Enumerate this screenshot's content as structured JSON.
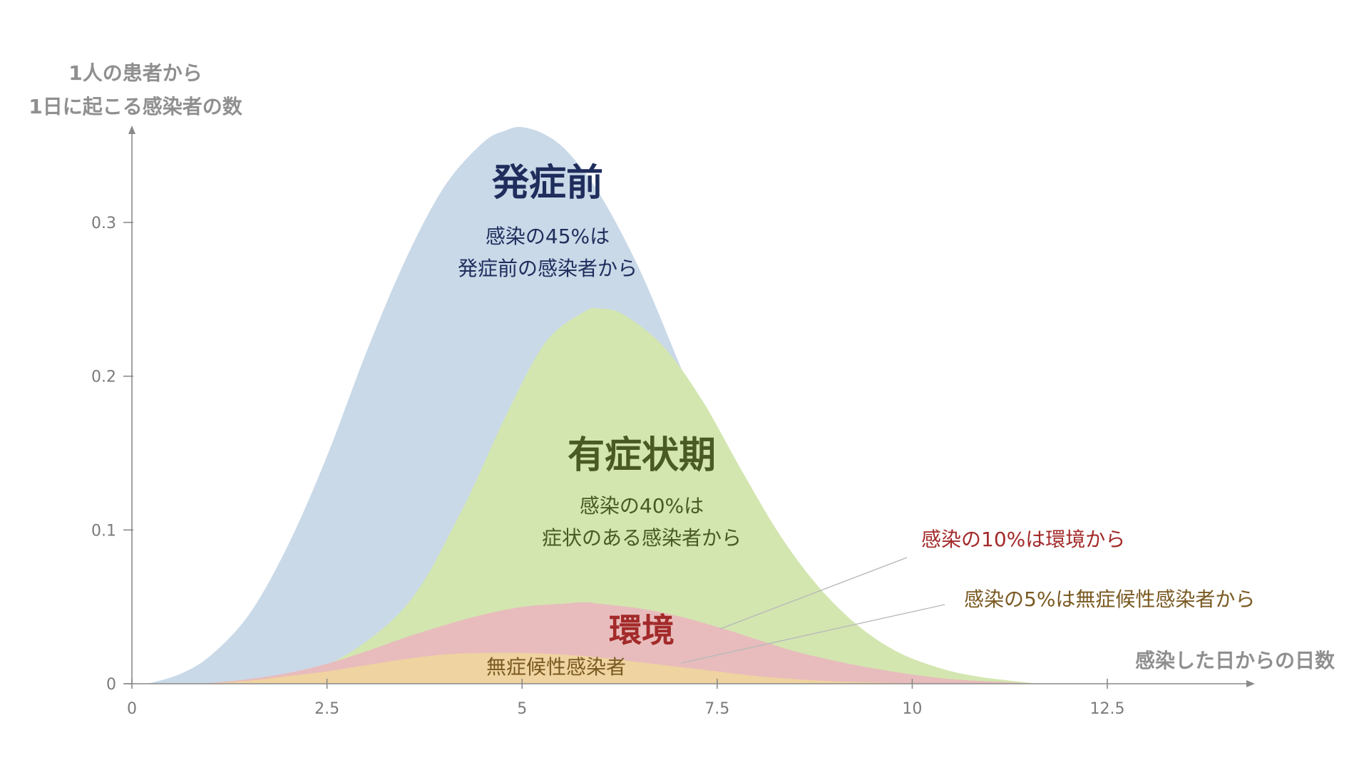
{
  "chart_data": {
    "type": "area",
    "ylabel": [
      "1人の患者から",
      "1日に起こる感染者の数"
    ],
    "xlabel": "感染した日からの日数",
    "xlim": [
      0,
      13
    ],
    "ylim": [
      0,
      0.37
    ],
    "xticks": [
      {
        "value": 0,
        "label": "0"
      },
      {
        "value": 2.5,
        "label": "2.5"
      },
      {
        "value": 5,
        "label": "5"
      },
      {
        "value": 7.5,
        "label": "7.5"
      },
      {
        "value": 10,
        "label": "10"
      },
      {
        "value": 12.5,
        "label": "12.5"
      }
    ],
    "yticks": [
      {
        "value": 0,
        "label": "0"
      },
      {
        "value": 0.1,
        "label": "0.1"
      },
      {
        "value": 0.2,
        "label": "0.2"
      },
      {
        "value": 0.3,
        "label": "0.3"
      }
    ],
    "grid": false,
    "legend": "none",
    "series": [
      {
        "name": "発症前",
        "color": "#c9d9e8",
        "x": [
          0.2,
          0.6,
          1.0,
          1.5,
          2.0,
          2.5,
          3.0,
          3.5,
          4.0,
          4.5,
          4.8,
          5.0,
          5.3,
          5.6,
          6.0,
          6.5,
          7.0,
          7.5,
          8.0,
          8.5,
          9.0,
          9.5,
          10.0,
          10.5,
          11.0,
          11.6
        ],
        "values": [
          0,
          0.006,
          0.018,
          0.045,
          0.09,
          0.148,
          0.215,
          0.275,
          0.323,
          0.352,
          0.36,
          0.362,
          0.357,
          0.345,
          0.318,
          0.27,
          0.21,
          0.148,
          0.095,
          0.055,
          0.03,
          0.016,
          0.008,
          0.004,
          0.002,
          0
        ]
      },
      {
        "name": "有症状期",
        "color": "#d3e6b0",
        "x": [
          1.5,
          2.5,
          3.5,
          4.2,
          4.8,
          5.3,
          5.8,
          6.0,
          6.3,
          6.8,
          7.3,
          7.8,
          8.3,
          8.8,
          9.3,
          9.8,
          10.3,
          10.8,
          11.6
        ],
        "values": [
          0,
          0.012,
          0.05,
          0.11,
          0.175,
          0.222,
          0.242,
          0.244,
          0.24,
          0.22,
          0.185,
          0.14,
          0.097,
          0.063,
          0.038,
          0.021,
          0.011,
          0.005,
          0
        ]
      },
      {
        "name": "環境",
        "color": "#e8bcbc",
        "x": [
          0.9,
          1.5,
          2.0,
          2.5,
          3.0,
          3.5,
          4.0,
          4.5,
          5.0,
          5.5,
          5.8,
          6.0,
          6.5,
          7.0,
          7.5,
          8.0,
          8.5,
          9.0,
          9.5,
          10.0,
          10.5,
          11.0,
          11.6
        ],
        "values": [
          0,
          0.003,
          0.007,
          0.013,
          0.021,
          0.03,
          0.038,
          0.045,
          0.05,
          0.052,
          0.053,
          0.052,
          0.049,
          0.044,
          0.037,
          0.029,
          0.021,
          0.015,
          0.01,
          0.006,
          0.003,
          0.0015,
          0
        ]
      },
      {
        "name": "無症候性感染者",
        "color": "#efd3a0",
        "x": [
          0.9,
          1.5,
          2.0,
          2.5,
          3.0,
          3.5,
          4.0,
          4.5,
          5.0,
          5.5,
          6.0,
          6.5,
          7.0,
          7.5,
          8.0,
          8.5,
          9.0,
          9.5,
          10.0,
          10.8
        ],
        "values": [
          0,
          0.002,
          0.005,
          0.008,
          0.012,
          0.016,
          0.019,
          0.02,
          0.02,
          0.019,
          0.017,
          0.014,
          0.011,
          0.008,
          0.005,
          0.003,
          0.0015,
          0.0008,
          0.0003,
          0
        ]
      }
    ],
    "annotations": {
      "presymptomatic": {
        "title": "発症前",
        "line1": "感染の45%は",
        "line2": "発症前の感染者から"
      },
      "symptomatic": {
        "title": "有症状期",
        "line1": "感染の40%は",
        "line2": "症状のある感染者から"
      },
      "environment": {
        "title": "環境",
        "note": "感染の10%は環境から"
      },
      "asymptomatic": {
        "title": "無症候性感染者",
        "note": "感染の5%は無症候性感染者から"
      }
    },
    "text_colors": {
      "presymptomatic": "#1f2d5c",
      "symptomatic": "#4a5a23",
      "environment": "#a32a2a",
      "asymptomatic": "#7a5a22"
    }
  }
}
